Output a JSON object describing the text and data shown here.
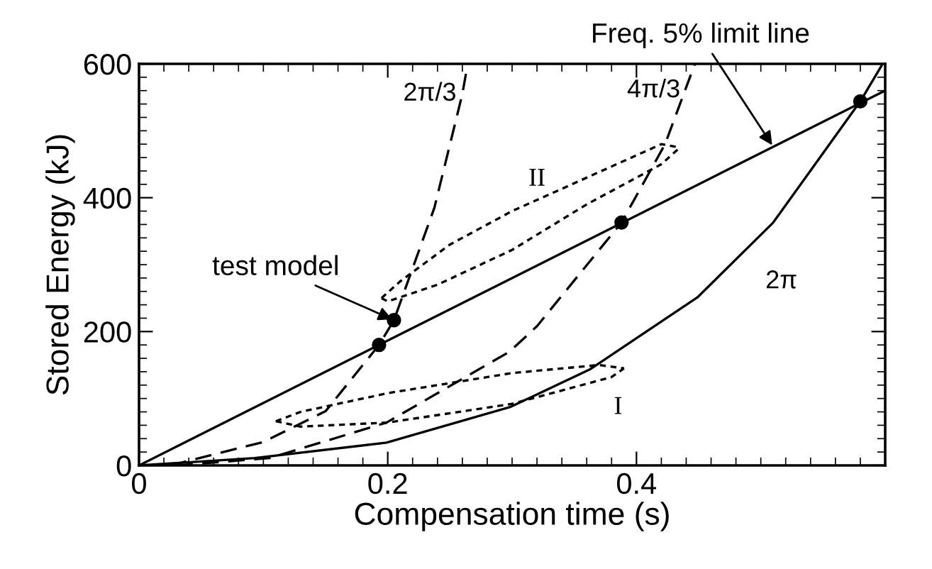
{
  "chart_data": {
    "type": "line",
    "xlabel": "Compensation time (s)",
    "ylabel": "Stored Energy (kJ)",
    "xlim": [
      0,
      0.6
    ],
    "ylim": [
      0,
      600
    ],
    "xticks": [
      0,
      0.2,
      0.4
    ],
    "yticks": [
      0,
      200,
      400,
      600
    ],
    "grid": false,
    "series": [
      {
        "color": "#000000",
        "line_style": "dashed",
        "x": [
          0.025,
          0.1,
          0.15,
          0.193,
          0.205,
          0.2375,
          0.26,
          0.264
        ],
        "values": [
          0,
          35,
          81,
          180,
          217,
          385,
          555,
          597
        ]
      },
      {
        "color": "#000000",
        "line_style": "dashed",
        "x": [
          0.03,
          0.105,
          0.199,
          0.298,
          0.32,
          0.388,
          0.423,
          0.447
        ],
        "values": [
          0,
          11,
          64,
          170,
          208,
          363,
          480,
          600
        ]
      },
      {
        "color": "#000000",
        "line_style": "solid",
        "x": [
          0,
          0.093,
          0.199,
          0.298,
          0.32,
          0.363,
          0.449,
          0.51,
          0.58,
          0.597
        ],
        "values": [
          0,
          11,
          34,
          87,
          106,
          144,
          251,
          363,
          544,
          597
        ]
      },
      {
        "color": "#000000",
        "line_style": "solid",
        "x": [
          0,
          0.6
        ],
        "values": [
          0,
          560
        ]
      },
      {
        "color": "#000000",
        "line_style": "dotted",
        "x": [
          0.11,
          0.13,
          0.2,
          0.3,
          0.37,
          0.39
        ],
        "values": [
          66,
          80,
          108,
          138,
          150,
          145
        ]
      },
      {
        "color": "#000000",
        "line_style": "dotted",
        "x": [
          0.11,
          0.13,
          0.2,
          0.3,
          0.38,
          0.39
        ],
        "values": [
          66,
          58,
          64,
          92,
          132,
          145
        ]
      },
      {
        "color": "#000000",
        "line_style": "dotted",
        "x": [
          0.195,
          0.21,
          0.25,
          0.3,
          0.36,
          0.42,
          0.435
        ],
        "values": [
          250,
          275,
          330,
          380,
          430,
          480,
          475
        ]
      },
      {
        "color": "#000000",
        "line_style": "dotted",
        "x": [
          0.195,
          0.2,
          0.24,
          0.3,
          0.36,
          0.42,
          0.435
        ],
        "values": [
          250,
          245,
          270,
          322,
          390,
          450,
          475
        ]
      },
      {
        "type": "scatter",
        "color": "#000000",
        "marker": "circle",
        "x": [
          0.193,
          0.205,
          0.388,
          0.58
        ],
        "values": [
          180,
          217,
          363,
          544
        ]
      }
    ],
    "annotations": [
      {
        "text": "test model",
        "x": 0.205,
        "y": 217
      },
      {
        "text": "Freq. 5% limit line",
        "x": 0.51,
        "y": 476
      },
      {
        "text": "2π/3",
        "x": 0.26,
        "y": 555
      },
      {
        "text": "4π/3",
        "x": 0.44,
        "y": 560
      },
      {
        "text": "2π",
        "x": 0.45,
        "y": 251
      },
      {
        "text": "I",
        "x": 0.39,
        "y": 145
      },
      {
        "text": "II",
        "x": 0.32,
        "y": 398
      }
    ]
  }
}
